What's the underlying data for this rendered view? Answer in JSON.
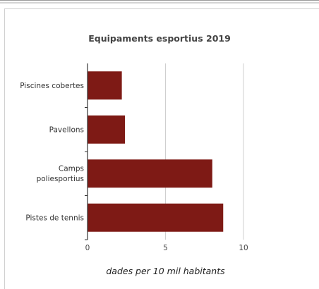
{
  "chart_data": {
    "type": "bar",
    "orientation": "horizontal",
    "title": "Equipaments esportius 2019",
    "categories": [
      "Piscines cobertes",
      "Pavellons",
      "Camps poliesportius",
      "Pistes de tennis"
    ],
    "category_lines": [
      [
        "Piscines cobertes"
      ],
      [
        "Pavellons"
      ],
      [
        "Camps",
        "poliesportius"
      ],
      [
        "Pistes de tennis"
      ]
    ],
    "values": [
      2.2,
      2.4,
      8.0,
      8.7
    ],
    "xlabel": "dades per 10 mil habitants",
    "ylabel": "",
    "xlim": [
      0,
      10
    ],
    "xticks": [
      0,
      5,
      10
    ],
    "grid": true,
    "bar_color": "#7e1a15"
  }
}
